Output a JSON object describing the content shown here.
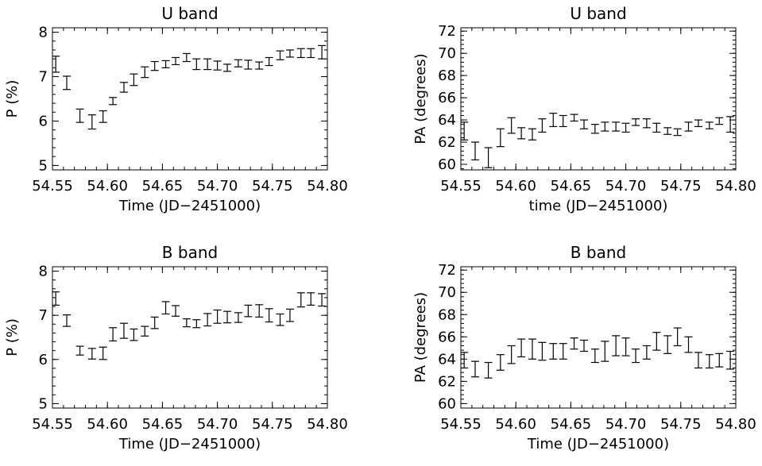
{
  "chart_data": [
    {
      "type": "scatter",
      "title": "U band",
      "xlabel": "Time (JD−2451000)",
      "ylabel": "P (%)",
      "xlim": [
        54.55,
        54.8
      ],
      "ylim": [
        4.9,
        8.1
      ],
      "xticks": [
        54.55,
        54.6,
        54.65,
        54.7,
        54.75,
        54.8
      ],
      "xtick_labels": [
        "54.55",
        "54.60",
        "54.65",
        "54.70",
        "54.75",
        "54.80"
      ],
      "yticks": [
        5,
        6,
        7,
        8
      ],
      "ytick_labels": [
        "5",
        "6",
        "7",
        "8"
      ],
      "series": [
        {
          "x": [
            54.553,
            54.563,
            54.575,
            54.586,
            54.596,
            54.605,
            54.615,
            54.624,
            54.634,
            54.643,
            54.653,
            54.662,
            54.672,
            54.681,
            54.691,
            54.7,
            54.709,
            54.719,
            54.728,
            54.738,
            54.747,
            54.757,
            54.766,
            54.776,
            54.785,
            54.795
          ],
          "y": [
            7.28,
            6.86,
            6.12,
            5.98,
            6.1,
            6.45,
            6.76,
            6.93,
            7.1,
            7.24,
            7.28,
            7.35,
            7.43,
            7.28,
            7.28,
            7.25,
            7.2,
            7.3,
            7.27,
            7.25,
            7.34,
            7.48,
            7.52,
            7.53,
            7.53,
            7.55
          ],
          "err": [
            0.18,
            0.15,
            0.15,
            0.16,
            0.13,
            0.08,
            0.11,
            0.13,
            0.12,
            0.1,
            0.08,
            0.08,
            0.09,
            0.12,
            0.12,
            0.1,
            0.08,
            0.08,
            0.1,
            0.08,
            0.09,
            0.1,
            0.08,
            0.1,
            0.1,
            0.15
          ]
        }
      ]
    },
    {
      "type": "scatter",
      "title": "U band",
      "xlabel": "time (JD−2451000)",
      "ylabel": "PA (degrees)",
      "xlim": [
        54.55,
        54.8
      ],
      "ylim": [
        59.5,
        72.3
      ],
      "xticks": [
        54.55,
        54.6,
        54.65,
        54.7,
        54.75,
        54.8
      ],
      "xtick_labels": [
        "54.55",
        "54.60",
        "54.65",
        "54.70",
        "54.75",
        "54.80"
      ],
      "yticks": [
        60,
        62,
        64,
        66,
        68,
        70,
        72
      ],
      "ytick_labels": [
        "60",
        "62",
        "64",
        "66",
        "68",
        "70",
        "72"
      ],
      "series": [
        {
          "x": [
            54.553,
            54.563,
            54.575,
            54.586,
            54.596,
            54.605,
            54.615,
            54.624,
            54.634,
            54.643,
            54.653,
            54.662,
            54.672,
            54.681,
            54.691,
            54.7,
            54.709,
            54.719,
            54.728,
            54.738,
            54.747,
            54.757,
            54.766,
            54.776,
            54.785,
            54.795
          ],
          "y": [
            63.0,
            61.2,
            60.6,
            62.4,
            63.5,
            62.8,
            62.7,
            63.5,
            64.0,
            63.9,
            64.2,
            63.6,
            63.2,
            63.4,
            63.4,
            63.3,
            63.8,
            63.7,
            63.3,
            63.0,
            62.9,
            63.4,
            63.7,
            63.5,
            63.9,
            63.6
          ],
          "err": [
            0.8,
            0.8,
            0.9,
            0.8,
            0.7,
            0.5,
            0.5,
            0.6,
            0.6,
            0.5,
            0.3,
            0.4,
            0.4,
            0.4,
            0.4,
            0.4,
            0.3,
            0.4,
            0.4,
            0.3,
            0.3,
            0.4,
            0.3,
            0.3,
            0.3,
            0.7
          ]
        }
      ]
    },
    {
      "type": "scatter",
      "title": "B band",
      "xlabel": "Time (JD−2451000)",
      "ylabel": "P (%)",
      "xlim": [
        54.55,
        54.8
      ],
      "ylim": [
        4.9,
        8.1
      ],
      "xticks": [
        54.55,
        54.6,
        54.65,
        54.7,
        54.75,
        54.8
      ],
      "xtick_labels": [
        "54.55",
        "54.60",
        "54.65",
        "54.70",
        "54.75",
        "54.80"
      ],
      "yticks": [
        5,
        6,
        7,
        8
      ],
      "ytick_labels": [
        "5",
        "6",
        "7",
        "8"
      ],
      "series": [
        {
          "x": [
            54.553,
            54.563,
            54.575,
            54.586,
            54.596,
            54.605,
            54.615,
            54.624,
            54.634,
            54.643,
            54.653,
            54.662,
            54.672,
            54.681,
            54.691,
            54.7,
            54.709,
            54.719,
            54.728,
            54.738,
            54.747,
            54.757,
            54.766,
            54.776,
            54.785,
            54.795
          ],
          "y": [
            7.38,
            6.88,
            6.2,
            6.13,
            6.14,
            6.57,
            6.65,
            6.56,
            6.64,
            6.83,
            7.17,
            7.1,
            6.83,
            6.81,
            6.9,
            6.97,
            6.96,
            6.95,
            7.1,
            7.1,
            7.0,
            6.9,
            7.0,
            7.35,
            7.37,
            7.35
          ],
          "err": [
            0.15,
            0.13,
            0.1,
            0.12,
            0.14,
            0.15,
            0.17,
            0.13,
            0.11,
            0.13,
            0.14,
            0.12,
            0.09,
            0.09,
            0.14,
            0.15,
            0.13,
            0.11,
            0.13,
            0.14,
            0.15,
            0.13,
            0.14,
            0.16,
            0.14,
            0.14
          ]
        }
      ]
    },
    {
      "type": "scatter",
      "title": "B band",
      "xlabel": "Time (JD−2451000)",
      "ylabel": "PA (degrees)",
      "xlim": [
        54.55,
        54.8
      ],
      "ylim": [
        59.6,
        72.3
      ],
      "xticks": [
        54.55,
        54.6,
        54.65,
        54.7,
        54.75,
        54.8
      ],
      "xtick_labels": [
        "54.55",
        "54.60",
        "54.65",
        "54.70",
        "54.75",
        "54.80"
      ],
      "yticks": [
        60,
        62,
        64,
        66,
        68,
        70,
        72
      ],
      "ytick_labels": [
        "60",
        "62",
        "64",
        "66",
        "68",
        "70",
        "72"
      ],
      "series": [
        {
          "x": [
            54.553,
            54.563,
            54.575,
            54.586,
            54.596,
            54.605,
            54.615,
            54.624,
            54.634,
            54.643,
            54.653,
            54.662,
            54.672,
            54.681,
            54.691,
            54.7,
            54.709,
            54.719,
            54.728,
            54.738,
            54.747,
            54.757,
            54.766,
            54.776,
            54.785,
            54.795
          ],
          "y": [
            63.9,
            63.1,
            63.0,
            63.7,
            64.4,
            65.0,
            64.9,
            64.7,
            64.7,
            64.7,
            65.4,
            65.2,
            64.3,
            64.7,
            65.2,
            65.1,
            64.3,
            64.6,
            65.6,
            65.3,
            66.0,
            65.3,
            63.9,
            63.8,
            63.9,
            63.9
          ],
          "err": [
            0.7,
            0.7,
            0.7,
            0.7,
            0.8,
            0.8,
            0.9,
            0.8,
            0.7,
            0.7,
            0.5,
            0.5,
            0.6,
            0.9,
            0.9,
            0.8,
            0.6,
            0.6,
            0.8,
            0.8,
            0.8,
            0.7,
            0.7,
            0.6,
            0.6,
            0.8
          ]
        }
      ]
    }
  ]
}
